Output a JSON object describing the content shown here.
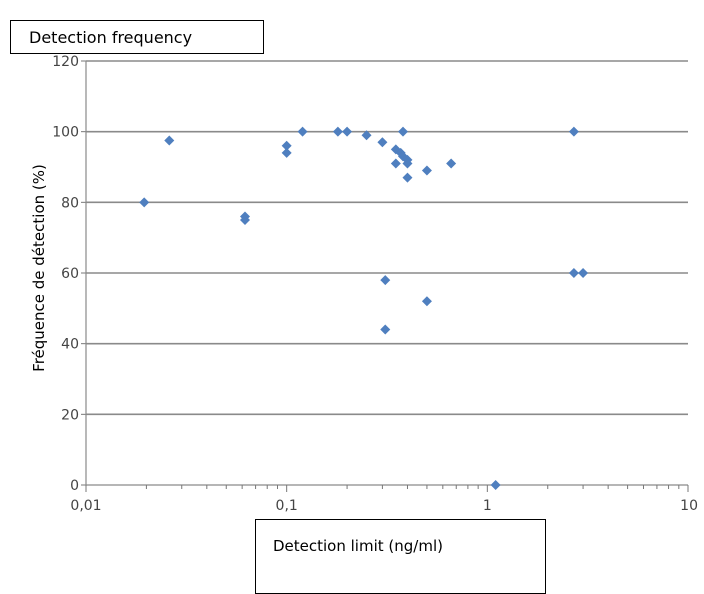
{
  "chart_data": {
    "type": "scatter",
    "title": "Detection frequency",
    "xlabel": "Detection limit (ng/ml)",
    "ylabel": "Fréquence de détection (%)",
    "xscale": "log",
    "xlim": [
      0.01,
      10
    ],
    "ylim": [
      0,
      120
    ],
    "x_ticks": [
      0.01,
      0.1,
      1,
      10
    ],
    "x_tick_labels": [
      "0,01",
      "0,1",
      "1",
      "10"
    ],
    "y_ticks": [
      0,
      20,
      40,
      60,
      80,
      100,
      120
    ],
    "y_tick_labels": [
      "0",
      "20",
      "40",
      "60",
      "80",
      "100",
      "120"
    ],
    "grid": "horizontal",
    "legend": "none",
    "marker_color": "#4f7fbf",
    "grid_color": "#8a8a8a",
    "series": [
      {
        "x": [
          0.0195,
          0.026,
          0.062,
          0.062,
          0.1,
          0.1,
          0.12,
          0.18,
          0.2,
          0.25,
          0.3,
          0.35,
          0.35,
          0.37,
          0.38,
          0.38,
          0.4,
          0.4,
          0.4,
          0.5,
          0.66,
          0.31,
          0.31,
          0.5,
          1.1,
          2.7,
          2.7,
          3.0
        ],
        "y": [
          80,
          97.5,
          76,
          75,
          96,
          94,
          100,
          100,
          100,
          99,
          97,
          95,
          91,
          94,
          100,
          93,
          92,
          91,
          87,
          89,
          91,
          58,
          44,
          52,
          0,
          100,
          60,
          60
        ]
      }
    ]
  }
}
